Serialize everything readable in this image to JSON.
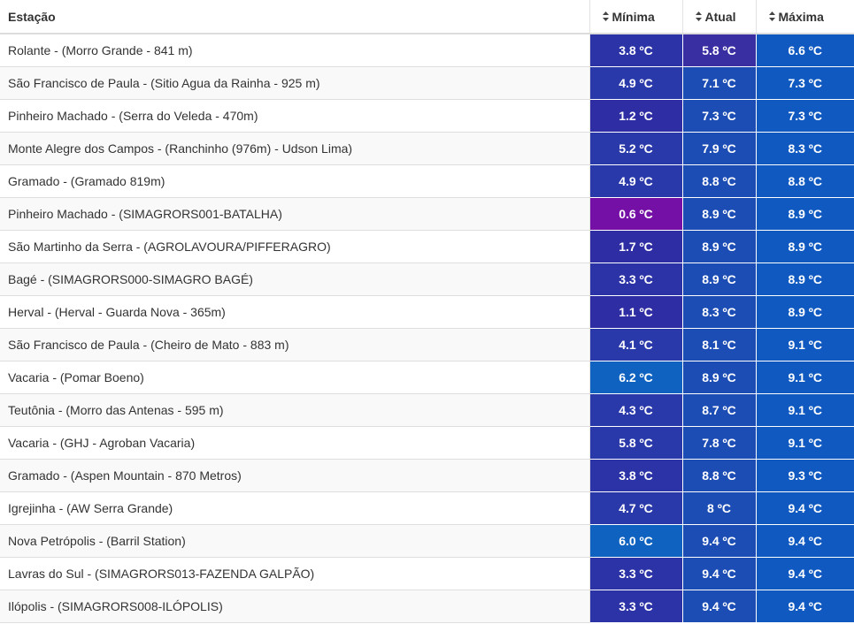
{
  "table": {
    "headers": {
      "station": "Estação",
      "min": "Mínima",
      "current": "Atual",
      "max": "Máxima"
    },
    "icons": {
      "sort": "sort-icon"
    },
    "colors": {
      "c38": "#2b35a8",
      "c5": "#2a3fae",
      "c6": "#1264c0",
      "c7": "#1553b8",
      "c8": "#1a4eb6",
      "c9": "#0d5ac2",
      "c06": "#7a0fa6",
      "c1": "#2f2fa3",
      "atual58": "#3130a4"
    },
    "rows": [
      {
        "station": "Rolante - (Morro Grande - 841 m)",
        "min": "3.8 ºC",
        "current": "5.8 ºC",
        "max": "6.6 ºC",
        "min_color": "#2c33a6",
        "current_color": "#3a2ea3",
        "max_color": "#1059c0"
      },
      {
        "station": "São Francisco de Paula - (Sitio Agua da Rainha - 925 m)",
        "min": "4.9 ºC",
        "current": "7.1 ºC",
        "max": "7.3 ºC",
        "min_color": "#2a39aa",
        "current_color": "#1c4db5",
        "max_color": "#1059c0"
      },
      {
        "station": "Pinheiro Machado - (Serra do Veleda - 470m)",
        "min": "1.2 ºC",
        "current": "7.3 ºC",
        "max": "7.3 ºC",
        "min_color": "#2f2da3",
        "current_color": "#1c4db5",
        "max_color": "#1059c0"
      },
      {
        "station": "Monte Alegre dos Campos - (Ranchinho (976m) - Udson Lima)",
        "min": "5.2 ºC",
        "current": "7.9 ºC",
        "max": "8.3 ºC",
        "min_color": "#2a39aa",
        "current_color": "#1c4db5",
        "max_color": "#1059c0"
      },
      {
        "station": "Gramado - (Gramado 819m)",
        "min": "4.9 ºC",
        "current": "8.8 ºC",
        "max": "8.8 ºC",
        "min_color": "#2a39aa",
        "current_color": "#1c4db5",
        "max_color": "#1059c0"
      },
      {
        "station": "Pinheiro Machado - (SIMAGRORS001-BATALHA)",
        "min": "0.6 ºC",
        "current": "8.9 ºC",
        "max": "8.9 ºC",
        "min_color": "#7510a6",
        "current_color": "#1c4db5",
        "max_color": "#1059c0"
      },
      {
        "station": "São Martinho da Serra - (AGROLAVOURA/PIFFERAGRO)",
        "min": "1.7 ºC",
        "current": "8.9 ºC",
        "max": "8.9 ºC",
        "min_color": "#2f2da3",
        "current_color": "#1c4db5",
        "max_color": "#1059c0"
      },
      {
        "station": "Bagé - (SIMAGRORS000-SIMAGRO BAGÉ)",
        "min": "3.3 ºC",
        "current": "8.9 ºC",
        "max": "8.9 ºC",
        "min_color": "#2c33a6",
        "current_color": "#1c4db5",
        "max_color": "#1059c0"
      },
      {
        "station": "Herval - (Herval - Guarda Nova - 365m)",
        "min": "1.1 ºC",
        "current": "8.3 ºC",
        "max": "8.9 ºC",
        "min_color": "#2f2da3",
        "current_color": "#1c4db5",
        "max_color": "#1059c0"
      },
      {
        "station": "São Francisco de Paula - (Cheiro de Mato - 883 m)",
        "min": "4.1 ºC",
        "current": "8.1 ºC",
        "max": "9.1 ºC",
        "min_color": "#2a39aa",
        "current_color": "#1c4db5",
        "max_color": "#1059c0"
      },
      {
        "station": "Vacaria - (Pomar Boeno)",
        "min": "6.2 ºC",
        "current": "8.9 ºC",
        "max": "9.1 ºC",
        "min_color": "#0f62bf",
        "current_color": "#1c4db5",
        "max_color": "#1059c0"
      },
      {
        "station": "Teutônia - (Morro das Antenas - 595 m)",
        "min": "4.3 ºC",
        "current": "8.7 ºC",
        "max": "9.1 ºC",
        "min_color": "#2a39aa",
        "current_color": "#1c4db5",
        "max_color": "#1059c0"
      },
      {
        "station": "Vacaria - (GHJ - Agroban Vacaria)",
        "min": "5.8 ºC",
        "current": "7.8 ºC",
        "max": "9.1 ºC",
        "min_color": "#2a39aa",
        "current_color": "#1c4db5",
        "max_color": "#1059c0"
      },
      {
        "station": "Gramado - (Aspen Mountain - 870 Metros)",
        "min": "3.8 ºC",
        "current": "8.8 ºC",
        "max": "9.3 ºC",
        "min_color": "#2c33a6",
        "current_color": "#1c4db5",
        "max_color": "#1059c0"
      },
      {
        "station": "Igrejinha - (AW Serra Grande)",
        "min": "4.7 ºC",
        "current": "8 ºC",
        "max": "9.4 ºC",
        "min_color": "#2a39aa",
        "current_color": "#1c4db5",
        "max_color": "#1059c0"
      },
      {
        "station": "Nova Petrópolis - (Barril Station)",
        "min": "6.0 ºC",
        "current": "9.4 ºC",
        "max": "9.4 ºC",
        "min_color": "#0f62bf",
        "current_color": "#1c4db5",
        "max_color": "#1059c0"
      },
      {
        "station": "Lavras do Sul - (SIMAGRORS013-FAZENDA GALPÃO)",
        "min": "3.3 ºC",
        "current": "9.4 ºC",
        "max": "9.4 ºC",
        "min_color": "#2c33a6",
        "current_color": "#1c4db5",
        "max_color": "#1059c0"
      },
      {
        "station": "Ilópolis - (SIMAGRORS008-ILÓPOLIS)",
        "min": "3.3 ºC",
        "current": "9.4 ºC",
        "max": "9.4 ºC",
        "min_color": "#2c33a6",
        "current_color": "#1c4db5",
        "max_color": "#1059c0"
      }
    ]
  }
}
